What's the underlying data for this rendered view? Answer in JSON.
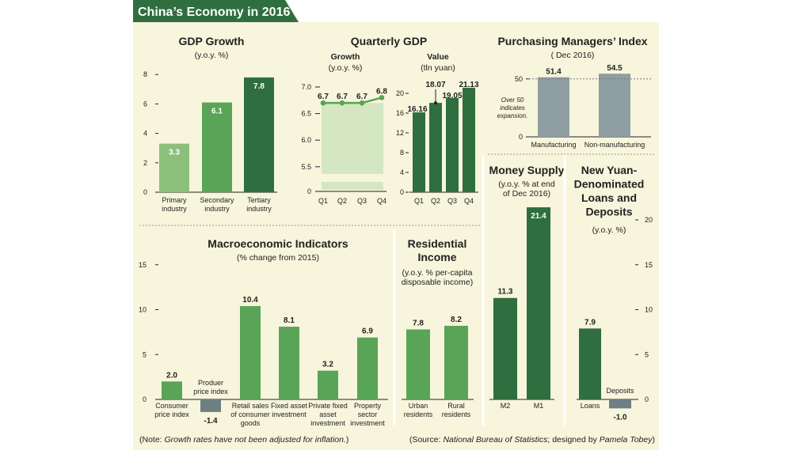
{
  "page_title": "China’s Economy in 2016",
  "colors": {
    "panel_bg": "#f7f5dc",
    "header_green": "#2f6e3e",
    "dark_green": "#2f6e3e",
    "medium_green": "#5aa458",
    "light_green": "#8cc07a",
    "pale_green": "#d4e7c2",
    "gray": "#6e7f83",
    "pmi_gray": "#8e9ea2",
    "line_green": "#55a552"
  },
  "chart_data": [
    {
      "id": "gdp",
      "type": "bar",
      "title": "GDP Growth",
      "subtitle": "(y.o.y. %)",
      "categories": [
        [
          "Primary",
          "industry"
        ],
        [
          "Secondary",
          "industry"
        ],
        [
          "Tertiary",
          "industry"
        ]
      ],
      "values": [
        3.3,
        6.1,
        7.8
      ],
      "value_labels": [
        "3.3",
        "6.1",
        "7.8"
      ],
      "ylim": [
        0,
        8
      ],
      "yticks": [
        "0",
        "2",
        "4",
        "6",
        "8"
      ],
      "grid": false
    },
    {
      "id": "quarterly_gdp",
      "type": "line",
      "title": "Quarterly GDP",
      "subtitle": "Growth",
      "subtitle2": "(y.o.y. %)",
      "categories": [
        "Q1",
        "Q2",
        "Q3",
        "Q4"
      ],
      "values": [
        6.7,
        6.7,
        6.7,
        6.8
      ],
      "value_labels": [
        "6.7",
        "6.7",
        "6.7",
        "6.8"
      ],
      "ylim": [
        5.0,
        7.0
      ],
      "axis_break": true,
      "yticks": [
        "0",
        "5.5",
        "6.0",
        "6.5",
        "7.0"
      ]
    },
    {
      "id": "quarterly_value",
      "type": "bar",
      "subtitle": "Value",
      "subtitle2": "(tln yuan)",
      "categories": [
        "Q1",
        "Q2",
        "Q3",
        "Q4"
      ],
      "values": [
        16.16,
        18.07,
        19.05,
        21.13
      ],
      "value_labels": [
        "16.16",
        "18.07",
        "19.05",
        "21.13"
      ],
      "ylim": [
        0,
        22
      ],
      "yticks": [
        "0",
        "4",
        "8",
        "12",
        "16",
        "20"
      ]
    },
    {
      "id": "pmi",
      "type": "bar",
      "title": "Purchasing Managers’ Index",
      "subtitle": "( Dec 2016)",
      "categories": [
        "Manufacturing",
        "Non-manufacturing"
      ],
      "values": [
        51.4,
        54.5
      ],
      "value_labels": [
        "51.4",
        "54.5"
      ],
      "reference_line": 50,
      "annotation": [
        "Over 50",
        "indicates",
        "expansion."
      ],
      "yticks": [
        "0",
        "50"
      ]
    },
    {
      "id": "macro",
      "type": "bar",
      "title": "Macroeconomic Indicators",
      "subtitle": "(% change from 2015)",
      "categories": [
        [
          "Consumer",
          "price index"
        ],
        [
          "Produer",
          "price index"
        ],
        [
          "Retail sales",
          "of consumer",
          "goods"
        ],
        [
          "Fixed asset",
          "investment"
        ],
        [
          "Private fixed",
          "asset",
          "investment"
        ],
        [
          "Property",
          "sector",
          "investment"
        ]
      ],
      "values": [
        2.0,
        -1.4,
        10.4,
        8.1,
        3.2,
        6.9
      ],
      "value_labels": [
        "2.0",
        "-1.4",
        "10.4",
        "8.1",
        "3.2",
        "6.9"
      ],
      "ylim": [
        0,
        15
      ],
      "yticks": [
        "0",
        "5",
        "10",
        "15"
      ]
    },
    {
      "id": "income",
      "type": "bar",
      "title": [
        "Residential",
        "Income"
      ],
      "subtitle": [
        "(y.o.y. % per-capita",
        "disposable income)"
      ],
      "categories": [
        [
          "Urban",
          "residents"
        ],
        [
          "Rural",
          "residents"
        ]
      ],
      "values": [
        7.8,
        8.2
      ],
      "value_labels": [
        "7.8",
        "8.2"
      ]
    },
    {
      "id": "money_supply",
      "type": "bar",
      "title": "Money Supply",
      "subtitle": [
        "(y.o.y. % at end",
        "of Dec 2016)"
      ],
      "categories": [
        "M2",
        "M1"
      ],
      "values": [
        11.3,
        21.4
      ],
      "value_labels": [
        "11.3",
        "21.4"
      ]
    },
    {
      "id": "loans",
      "type": "bar",
      "title": [
        "New Yuan-",
        "Denominated",
        "Loans and",
        "Deposits"
      ],
      "subtitle": "(y.o.y. %)",
      "categories": [
        "Loans",
        "Deposits"
      ],
      "values": [
        7.9,
        -1.0
      ],
      "value_labels": [
        "7.9",
        "-1.0"
      ],
      "ylim": [
        0,
        20
      ],
      "yticks": [
        "0",
        "5",
        "10",
        "15",
        "20"
      ]
    }
  ],
  "footer": {
    "note_prefix": "(Note: ",
    "note_italic": "Growth rates have not been adjusted for inflation.",
    "note_suffix": ")",
    "source_prefix": "(Source: ",
    "source_italic": "National Bureau of Statistics",
    "source_mid": "; designed by ",
    "source_author": "Pamela Tobey",
    "source_suffix": ")"
  }
}
